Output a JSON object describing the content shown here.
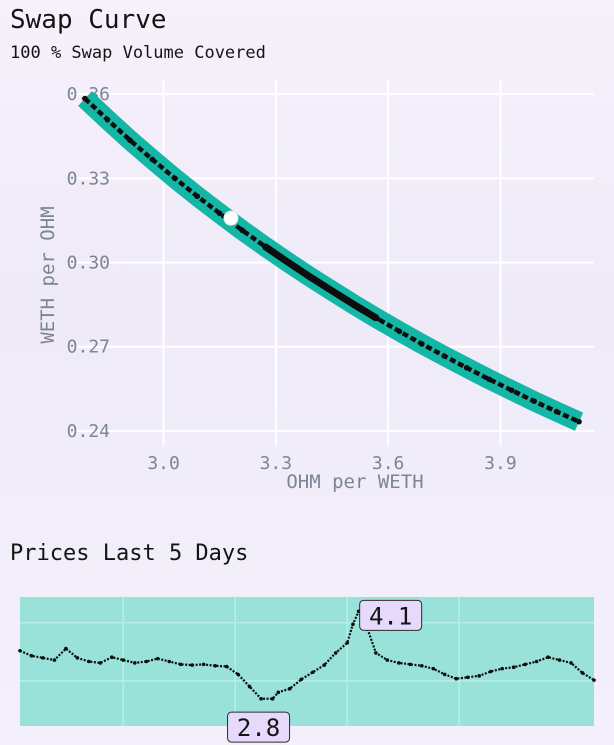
{
  "header": {
    "title": "Swap Curve",
    "subtitle": "100 % Swap Volume Covered"
  },
  "history": {
    "title": "Prices Last 5 Days"
  },
  "colors": {
    "curve_band": "#14b6a6",
    "points": "#0d0d0d",
    "current_point": "#ffffff",
    "history_panel": "#98e2d9",
    "label_fill": "#e6d9fb"
  },
  "chart_data": [
    {
      "type": "scatter",
      "title": "Swap Curve",
      "xlabel": "OHM per WETH",
      "ylabel": "WETH per OHM",
      "xlim": [
        2.75,
        4.15
      ],
      "ylim": [
        0.235,
        0.365
      ],
      "x_ticks": [
        "3.0",
        "3.3",
        "3.6",
        "3.9"
      ],
      "y_ticks": [
        "0.24",
        "0.27",
        "0.30",
        "0.33",
        "0.36"
      ],
      "grid": true,
      "series": [
        {
          "kind": "curve",
          "x": [
            2.79,
            2.85,
            2.91,
            2.97,
            3.03,
            3.09,
            3.15,
            3.21,
            3.27,
            3.33,
            3.39,
            3.45,
            3.51,
            3.57,
            3.63,
            3.69,
            3.75,
            3.81,
            3.87,
            3.93,
            3.99,
            4.05,
            4.11
          ],
          "y": [
            0.3584,
            0.3509,
            0.3436,
            0.3367,
            0.33,
            0.3236,
            0.3175,
            0.3115,
            0.3058,
            0.3003,
            0.295,
            0.2899,
            0.2849,
            0.2801,
            0.2755,
            0.271,
            0.2667,
            0.2625,
            0.2584,
            0.2545,
            0.2506,
            0.2469,
            0.2433
          ]
        },
        {
          "kind": "current",
          "x": [
            3.18
          ],
          "y": [
            0.3158
          ]
        }
      ]
    },
    {
      "type": "line",
      "title": "Prices Last 5 Days",
      "grid": true,
      "x": [
        0.0,
        0.02,
        0.04,
        0.06,
        0.08,
        0.1,
        0.12,
        0.14,
        0.16,
        0.18,
        0.2,
        0.22,
        0.24,
        0.26,
        0.28,
        0.3,
        0.32,
        0.34,
        0.36,
        0.38,
        0.4,
        0.42,
        0.44,
        0.45,
        0.47,
        0.49,
        0.51,
        0.53,
        0.55,
        0.57,
        0.58,
        0.59,
        0.6,
        0.62,
        0.64,
        0.66,
        0.68,
        0.7,
        0.72,
        0.74,
        0.76,
        0.78,
        0.8,
        0.82,
        0.84,
        0.86,
        0.88,
        0.9,
        0.92,
        0.94,
        0.96,
        0.98,
        1.0
      ],
      "y": [
        3.55,
        3.48,
        3.45,
        3.42,
        3.58,
        3.45,
        3.4,
        3.38,
        3.46,
        3.42,
        3.38,
        3.4,
        3.44,
        3.4,
        3.36,
        3.35,
        3.36,
        3.34,
        3.33,
        3.22,
        3.05,
        2.88,
        2.88,
        2.97,
        3.02,
        3.15,
        3.25,
        3.35,
        3.52,
        3.66,
        3.92,
        4.1,
        3.98,
        3.52,
        3.42,
        3.38,
        3.36,
        3.34,
        3.3,
        3.22,
        3.16,
        3.18,
        3.2,
        3.26,
        3.3,
        3.32,
        3.36,
        3.4,
        3.46,
        3.42,
        3.38,
        3.24,
        3.14
      ],
      "ylim": [
        2.5,
        4.3
      ],
      "annotations": [
        {
          "label": "4.1",
          "x": 0.59,
          "y": 4.1
        },
        {
          "label": "2.8",
          "x": 0.44,
          "y": 2.82
        }
      ]
    }
  ]
}
